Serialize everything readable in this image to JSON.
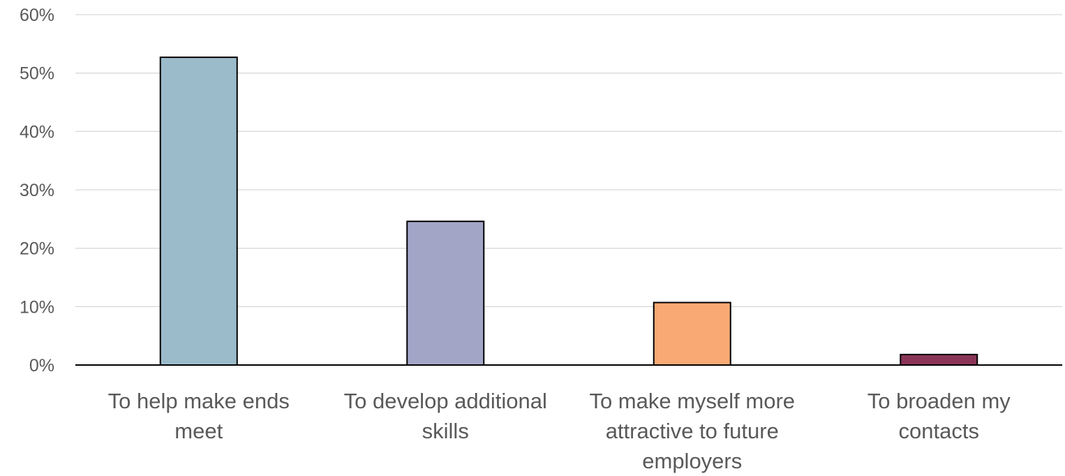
{
  "chart_data": {
    "type": "bar",
    "title": "",
    "xlabel": "",
    "ylabel": "",
    "ylim": [
      0,
      60
    ],
    "y_tick_values": [
      0,
      10,
      20,
      30,
      40,
      50,
      60
    ],
    "y_tick_labels": [
      "0%",
      "10%",
      "20%",
      "30%",
      "40%",
      "50%",
      "60%"
    ],
    "grid": true,
    "legend": "none",
    "categories": [
      [
        "To help make ends",
        "meet"
      ],
      [
        "To develop additional",
        "skills"
      ],
      [
        "To make myself more",
        "attractive to future",
        "employers"
      ],
      [
        "To broaden my",
        "contacts"
      ]
    ],
    "values": [
      52.7,
      24.6,
      10.7,
      1.8
    ],
    "colors": [
      "#9bbbcb",
      "#a3a5c7",
      "#f9a973",
      "#8a3558"
    ]
  }
}
